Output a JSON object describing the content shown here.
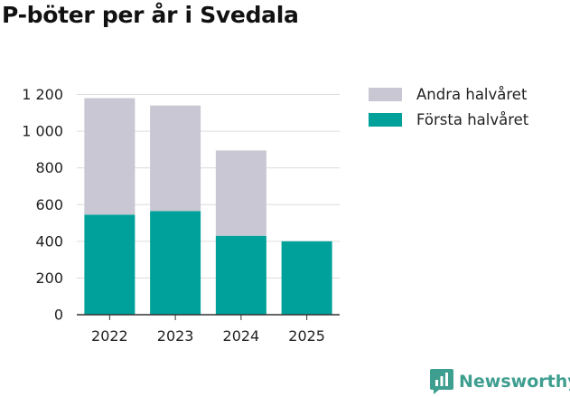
{
  "title": "P-böter per år i Svedala",
  "brand": {
    "name": "Newsworthy",
    "color": "#3e9e8f"
  },
  "legend": [
    {
      "label": "Andra halvåret",
      "color": "#c8c7d3"
    },
    {
      "label": "Första halvåret",
      "color": "#00a19a"
    }
  ],
  "chart_data": {
    "type": "bar",
    "stacked": true,
    "title": "P-böter per år i Svedala",
    "xlabel": "",
    "ylabel": "",
    "categories": [
      "2022",
      "2023",
      "2024",
      "2025"
    ],
    "series": [
      {
        "name": "Första halvåret",
        "color": "#00a19a",
        "values": [
          545,
          565,
          430,
          400
        ]
      },
      {
        "name": "Andra halvåret",
        "color": "#c8c7d3",
        "values": [
          635,
          575,
          465,
          0
        ]
      }
    ],
    "ylim": [
      0,
      1200
    ],
    "yticks": [
      0,
      200,
      400,
      600,
      800,
      1000,
      1200
    ],
    "ytick_labels": [
      "0",
      "200",
      "400",
      "600",
      "800",
      "1 000",
      "1 200"
    ],
    "grid": true,
    "legend_position": "top-right"
  }
}
